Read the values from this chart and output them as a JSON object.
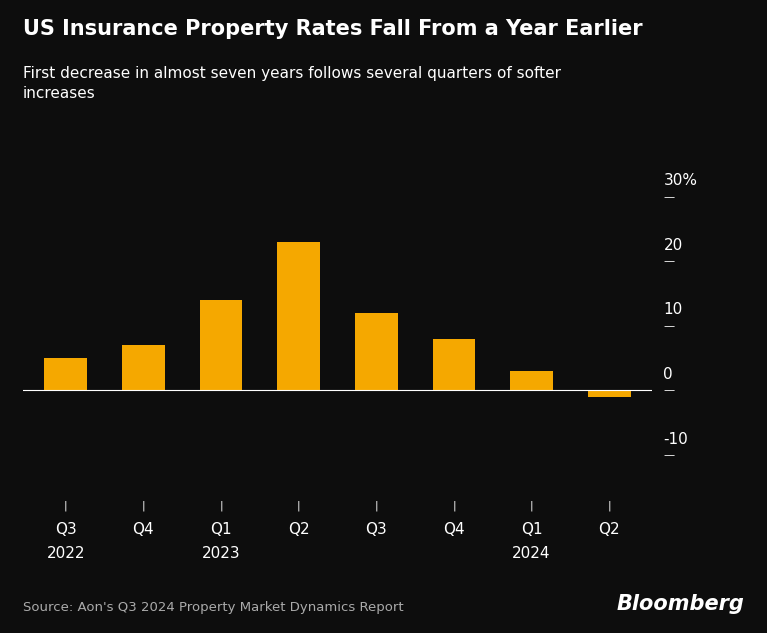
{
  "title": "US Insurance Property Rates Fall From a Year Earlier",
  "subtitle": "First decrease in almost seven years follows several quarters of softer\nincreases",
  "categories": [
    "Q3\n2022",
    "Q4",
    "Q1\n2023",
    "Q2",
    "Q3",
    "Q4",
    "Q1\n2024",
    "Q2"
  ],
  "values": [
    5.0,
    7.0,
    14.0,
    23.0,
    12.0,
    8.0,
    3.0,
    -1.0
  ],
  "bar_color": "#F5A800",
  "background_color": "#0d0d0d",
  "text_color": "#ffffff",
  "yticks": [
    -10,
    0,
    10,
    20,
    30
  ],
  "ytick_labels": [
    "-10",
    "0",
    "10",
    "20",
    "30%"
  ],
  "ylim": [
    -16,
    33
  ],
  "source": "Source: Aon's Q3 2024 Property Market Dynamics Report",
  "branding": "Bloomberg",
  "title_fontsize": 15,
  "subtitle_fontsize": 11,
  "tick_fontsize": 11,
  "source_fontsize": 9.5,
  "branding_fontsize": 15
}
